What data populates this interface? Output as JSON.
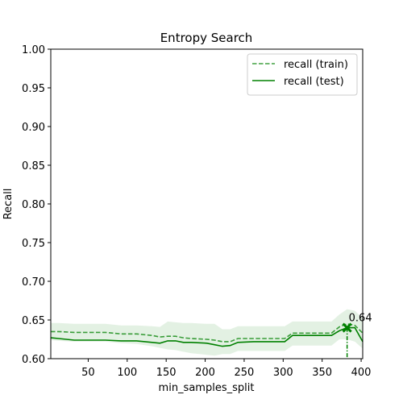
{
  "chart_data": {
    "type": "line",
    "title": "Entropy Search",
    "xlabel": "min_samples_split",
    "ylabel": "Recall",
    "xlim": [
      2,
      402
    ],
    "ylim": [
      0.6,
      1.0
    ],
    "xticks": [
      50,
      100,
      150,
      200,
      250,
      300,
      350,
      400
    ],
    "yticks": [
      0.6,
      0.65,
      0.7,
      0.75,
      0.8,
      0.85,
      0.9,
      0.95,
      1.0
    ],
    "ytick_labels": [
      "0.60",
      "0.65",
      "0.70",
      "0.75",
      "0.80",
      "0.85",
      "0.90",
      "0.95",
      "1.00"
    ],
    "grid": false,
    "legend_position": "top-right",
    "colors": {
      "line": "#008000",
      "band": "#008000"
    },
    "x": [
      2,
      12,
      32,
      52,
      72,
      92,
      112,
      132,
      142,
      152,
      162,
      172,
      182,
      202,
      212,
      222,
      232,
      242,
      262,
      282,
      302,
      312,
      322,
      342,
      362,
      372,
      382,
      392,
      402
    ],
    "series": [
      {
        "name": "recall (train)",
        "style": "dashed",
        "values": [
          0.635,
          0.635,
          0.634,
          0.634,
          0.634,
          0.632,
          0.632,
          0.63,
          0.628,
          0.629,
          0.629,
          0.627,
          0.626,
          0.625,
          0.624,
          0.622,
          0.622,
          0.626,
          0.626,
          0.626,
          0.626,
          0.633,
          0.633,
          0.633,
          0.633,
          0.641,
          0.645,
          0.643,
          0.633
        ],
        "band_upper": [
          0.646,
          0.646,
          0.645,
          0.645,
          0.645,
          0.643,
          0.643,
          0.642,
          0.641,
          0.648,
          0.647,
          0.646,
          0.646,
          0.645,
          0.645,
          0.638,
          0.638,
          0.642,
          0.642,
          0.642,
          0.642,
          0.648,
          0.648,
          0.648,
          0.648,
          0.657,
          0.664,
          0.662,
          0.652
        ],
        "band_lower": [
          0.624,
          0.623,
          0.622,
          0.622,
          0.622,
          0.62,
          0.619,
          0.616,
          0.614,
          0.612,
          0.611,
          0.609,
          0.607,
          0.605,
          0.604,
          0.606,
          0.606,
          0.61,
          0.61,
          0.61,
          0.61,
          0.617,
          0.617,
          0.617,
          0.617,
          0.625,
          0.625,
          0.622,
          0.613
        ]
      },
      {
        "name": "recall (test)",
        "style": "solid",
        "values": [
          0.627,
          0.626,
          0.624,
          0.624,
          0.624,
          0.623,
          0.623,
          0.621,
          0.62,
          0.623,
          0.623,
          0.621,
          0.621,
          0.62,
          0.618,
          0.616,
          0.617,
          0.621,
          0.622,
          0.622,
          0.622,
          0.63,
          0.63,
          0.63,
          0.63,
          0.636,
          0.64,
          0.64,
          0.622
        ]
      }
    ],
    "best_point": {
      "x": 382,
      "y": 0.64,
      "label": "0.64"
    }
  }
}
